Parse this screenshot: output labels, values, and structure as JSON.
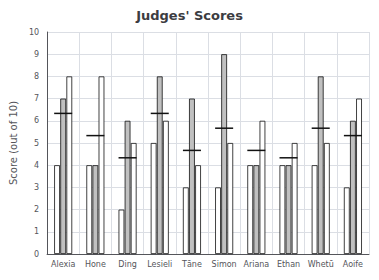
{
  "chart_data": {
    "type": "bar",
    "title": "Judges' Scores",
    "ylabel": "Score (out of 10)",
    "categories": [
      "Alexia",
      "Hone",
      "Ding",
      "Lesieli",
      "Tāne",
      "Simon",
      "Ariana",
      "Ethan",
      "Whetū",
      "Aoife"
    ],
    "series": [
      {
        "color": "white",
        "values": [
          4,
          4,
          2,
          5,
          3,
          3,
          4,
          4,
          4,
          3
        ]
      },
      {
        "color": "#c0c0c0",
        "values": [
          7,
          4,
          6,
          8,
          7,
          9,
          4,
          4,
          8,
          6
        ]
      },
      {
        "color": "white",
        "values": [
          8,
          8,
          5,
          6,
          4,
          5,
          6,
          5,
          5,
          7
        ]
      },
      {
        "type": "hline",
        "color": "#111111",
        "values": [
          6.333333333333333,
          5.333333333333333,
          4.333333333333333,
          6.333333333333333,
          4.666666666666667,
          5.666666666666667,
          4.666666666666667,
          4.333333333333333,
          5.666666666666667,
          5.333333333333333
        ]
      }
    ],
    "ylim": [
      0,
      10
    ],
    "yticks": [
      0,
      1,
      2,
      3,
      4,
      5,
      6,
      7,
      8,
      9,
      10
    ],
    "grid": true
  }
}
